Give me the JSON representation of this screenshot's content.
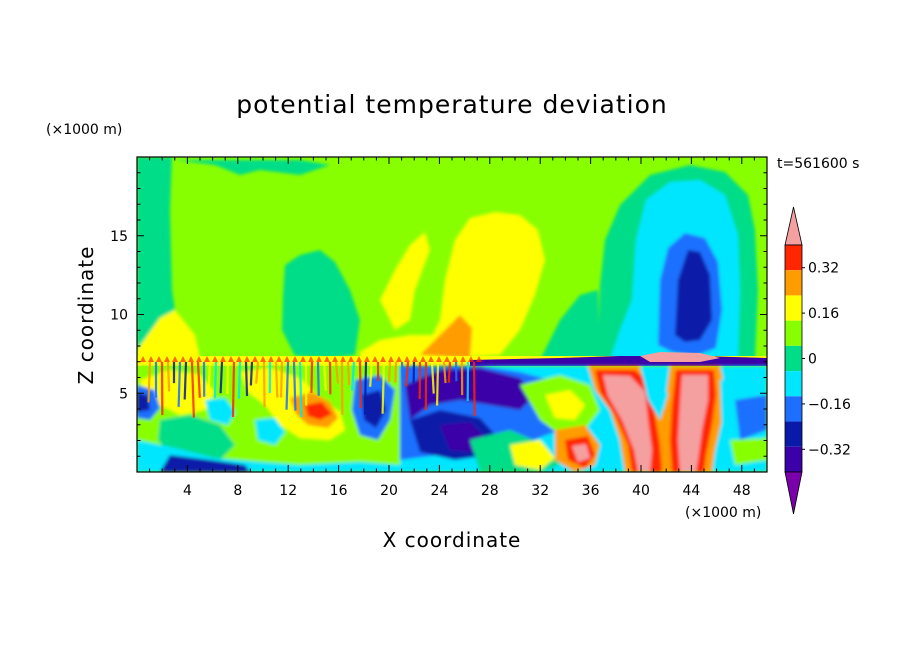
{
  "chart_data": {
    "type": "heatmap",
    "title": "potential temperature deviation",
    "time_label": "t=561600 s",
    "xlabel": "X coordinate",
    "ylabel": "Z coordinate",
    "x_unit": "(×1000 m)",
    "y_unit": "(×1000 m)",
    "xlim": [
      0,
      50
    ],
    "ylim": [
      0,
      20
    ],
    "x_ticks": [
      4,
      8,
      12,
      16,
      20,
      24,
      28,
      32,
      36,
      40,
      44,
      48
    ],
    "y_ticks": [
      5,
      10,
      15
    ],
    "colorbar": {
      "levels": [
        -0.4,
        -0.32,
        -0.24,
        -0.16,
        -0.08,
        0,
        0.08,
        0.16,
        0.24,
        0.32,
        0.4
      ],
      "labels": [
        "0.32",
        "0.16",
        "0",
        "−0.16",
        "−0.32"
      ],
      "label_values": [
        0.32,
        0.16,
        0,
        -0.16,
        -0.32
      ],
      "colors": [
        "#7a00ac",
        "#3b00a8",
        "#0a1aa8",
        "#1e6fff",
        "#00e6ff",
        "#00dd88",
        "#88ff00",
        "#ffff00",
        "#ff9c00",
        "#ff2600",
        "#f4a0a0"
      ],
      "extend": "both"
    },
    "regions": [
      {
        "desc": "background aloft",
        "x": [
          0,
          50
        ],
        "z": [
          7.5,
          20
        ],
        "value": 0.04
      },
      {
        "desc": "warm plume aloft",
        "x": [
          23,
          33
        ],
        "z": [
          8,
          16
        ],
        "value": 0.12
      },
      {
        "desc": "cold column aloft",
        "x": [
          40,
          46
        ],
        "z": [
          7.5,
          15
        ],
        "value": -0.3
      },
      {
        "desc": "warm plumes near surface",
        "x": [
          36,
          46
        ],
        "z": [
          0,
          7
        ],
        "value": 0.4
      }
    ]
  }
}
